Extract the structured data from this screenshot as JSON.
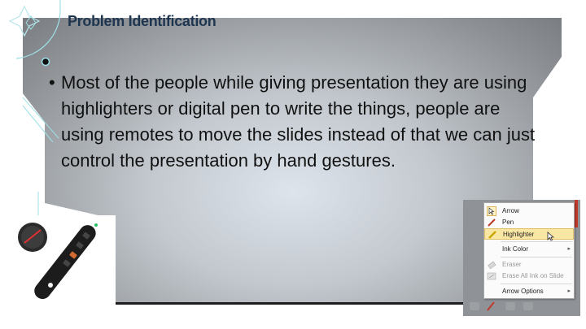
{
  "slide": {
    "title": "Problem Identification",
    "bullet_symbol": "•",
    "bullet_text": "Most of the people while giving presentation they are using highlighters or digital pen to write the things, people are using remotes to move the slides instead of that we can just control the presentation by hand gestures."
  },
  "context_menu": {
    "items": [
      {
        "label": "Arrow",
        "icon": "cursor-arrow-icon"
      },
      {
        "label": "Pen",
        "icon": "pen-icon"
      },
      {
        "label": "Highlighter",
        "icon": "highlighter-icon",
        "highlighted": true
      },
      {
        "label": "Ink Color",
        "submenu": true
      },
      {
        "label": "Eraser",
        "icon": "eraser-icon",
        "disabled": true
      },
      {
        "label": "Erase All Ink on Slide",
        "icon": "erase-all-icon",
        "disabled": true
      },
      {
        "label": "Arrow Options",
        "submenu": true
      }
    ],
    "submenu_arrow": "▸"
  },
  "colors": {
    "title": "#1e3550",
    "accent_teal": "#7fd3dc",
    "menu_highlight": "#fbe7a4",
    "remote_red": "#e03030"
  }
}
